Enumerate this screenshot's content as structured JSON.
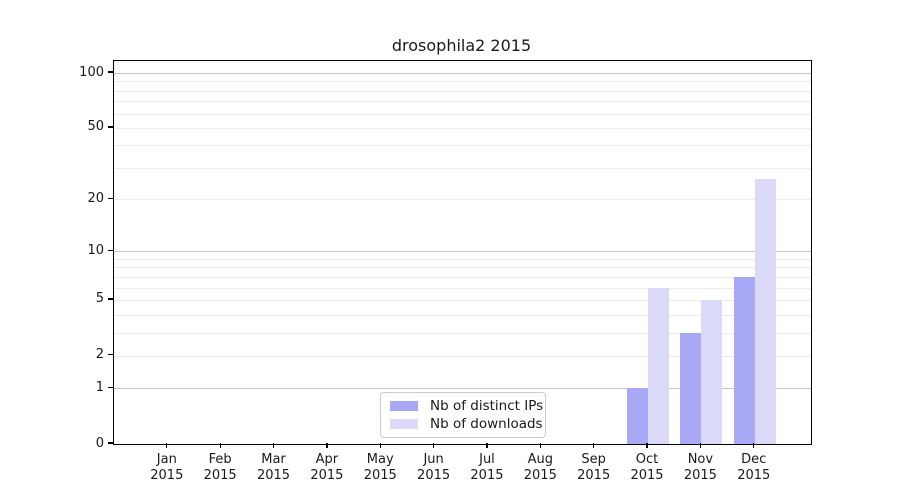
{
  "title": "drosophila2 2015",
  "colors": {
    "distinct_ips": "#a8a8f6",
    "downloads": "#dadaf8",
    "gridline_minor": "#ececec",
    "gridline_major": "#c6c6c6",
    "axis": "#000000",
    "text": "#1a1a1a",
    "legend_border": "#cccccc"
  },
  "legend": {
    "items": [
      {
        "label": "Nb of distinct IPs",
        "color": "#a8a8f6"
      },
      {
        "label": "Nb of downloads",
        "color": "#dadaf8"
      }
    ]
  },
  "chart_data": {
    "type": "bar",
    "title": "drosophila2 2015",
    "categories": [
      "Jan",
      "Feb",
      "Mar",
      "Apr",
      "May",
      "Jun",
      "Jul",
      "Aug",
      "Sep",
      "Oct",
      "Nov",
      "Dec"
    ],
    "category_year": "2015",
    "series": [
      {
        "name": "Nb of distinct IPs",
        "color": "#a8a8f6",
        "values": [
          0,
          0,
          0,
          0,
          0,
          0,
          0,
          0,
          0,
          1,
          3,
          7
        ]
      },
      {
        "name": "Nb of downloads",
        "color": "#dadaf8",
        "values": [
          0,
          0,
          0,
          0,
          0,
          0,
          0,
          0,
          0,
          6,
          5,
          26
        ]
      }
    ],
    "xlabel": "",
    "ylabel": "",
    "y_scale": "log10(1+y)",
    "ylim": [
      0,
      116
    ],
    "y_ticks": [
      0,
      1,
      2,
      5,
      10,
      20,
      50,
      100
    ],
    "y_major_gridlines": [
      1,
      10,
      100
    ],
    "y_minor_gridlines": [
      2,
      3,
      4,
      5,
      6,
      7,
      8,
      9,
      20,
      30,
      40,
      50,
      60,
      70,
      80,
      90
    ],
    "grid": true,
    "legend_position": "lower center"
  }
}
